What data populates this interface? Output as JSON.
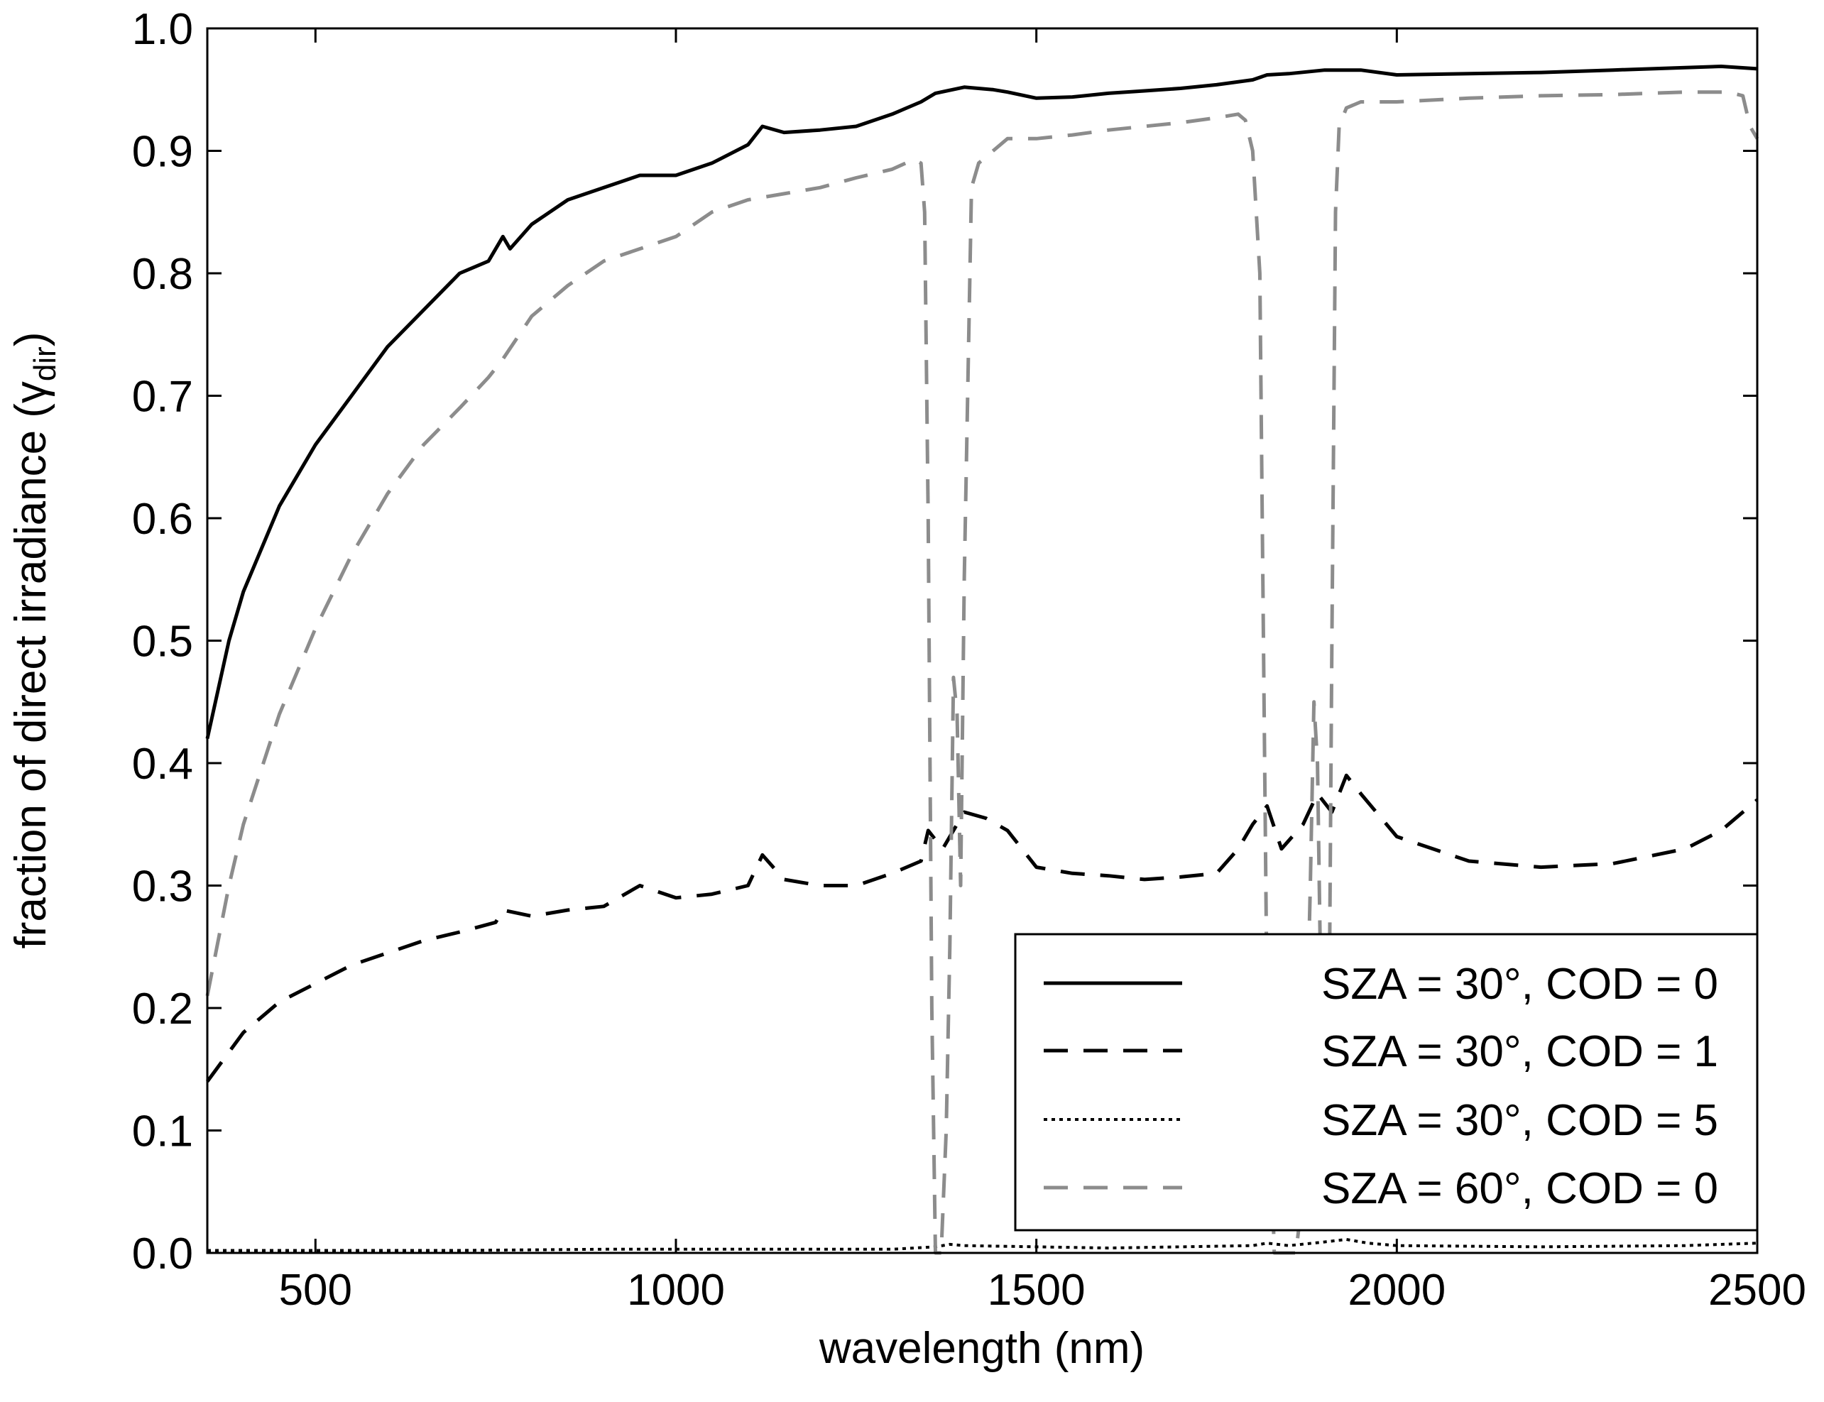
{
  "chart_data": {
    "type": "line",
    "title": "",
    "xlabel": "wavelength (nm)",
    "ylabel": "fraction of direct irradiance (γ",
    "ylabel_subscript": "dir",
    "ylabel_suffix": ")",
    "xlim": [
      350,
      2500
    ],
    "ylim": [
      0.0,
      1.0
    ],
    "x_ticks": [
      500,
      1000,
      1500,
      2000,
      2500
    ],
    "x_tick_labels": [
      "500",
      "1000",
      "1500",
      "2000",
      "2500"
    ],
    "y_ticks": [
      0.0,
      0.1,
      0.2,
      0.3,
      0.4,
      0.5,
      0.6,
      0.7,
      0.8,
      0.9,
      1.0
    ],
    "y_tick_labels": [
      "0.0",
      "0.1",
      "0.2",
      "0.3",
      "0.4",
      "0.5",
      "0.6",
      "0.7",
      "0.8",
      "0.9",
      "1.0"
    ],
    "grid": false,
    "legend_position": "bottom-right",
    "series": [
      {
        "name": "SZA = 30°, COD = 0",
        "color": "#000000",
        "style": "solid",
        "x": [
          350,
          380,
          400,
          450,
          500,
          550,
          600,
          650,
          700,
          740,
          760,
          770,
          800,
          850,
          900,
          950,
          1000,
          1050,
          1100,
          1120,
          1150,
          1200,
          1250,
          1300,
          1340,
          1360,
          1400,
          1440,
          1460,
          1500,
          1550,
          1600,
          1650,
          1700,
          1750,
          1800,
          1820,
          1850,
          1900,
          1950,
          2000,
          2100,
          2200,
          2300,
          2400,
          2450,
          2500
        ],
        "y": [
          0.42,
          0.5,
          0.54,
          0.61,
          0.66,
          0.7,
          0.74,
          0.77,
          0.8,
          0.81,
          0.83,
          0.82,
          0.84,
          0.86,
          0.87,
          0.88,
          0.88,
          0.89,
          0.905,
          0.92,
          0.915,
          0.917,
          0.92,
          0.93,
          0.94,
          0.947,
          0.952,
          0.95,
          0.948,
          0.943,
          0.944,
          0.947,
          0.949,
          0.951,
          0.954,
          0.958,
          0.962,
          0.963,
          0.966,
          0.966,
          0.962,
          0.963,
          0.964,
          0.966,
          0.968,
          0.969,
          0.967
        ]
      },
      {
        "name": "SZA = 30°, COD = 1",
        "color": "#000000",
        "style": "dashed",
        "x": [
          350,
          400,
          450,
          500,
          550,
          600,
          650,
          700,
          750,
          760,
          800,
          850,
          900,
          950,
          1000,
          1050,
          1100,
          1120,
          1150,
          1200,
          1250,
          1300,
          1340,
          1350,
          1370,
          1400,
          1430,
          1460,
          1500,
          1550,
          1600,
          1650,
          1700,
          1750,
          1780,
          1800,
          1820,
          1840,
          1870,
          1890,
          1910,
          1930,
          1950,
          2000,
          2050,
          2100,
          2200,
          2300,
          2400,
          2450,
          2500
        ],
        "y": [
          0.14,
          0.18,
          0.205,
          0.22,
          0.235,
          0.245,
          0.255,
          0.262,
          0.27,
          0.28,
          0.275,
          0.28,
          0.283,
          0.3,
          0.29,
          0.293,
          0.3,
          0.325,
          0.305,
          0.3,
          0.3,
          0.31,
          0.32,
          0.345,
          0.33,
          0.36,
          0.355,
          0.345,
          0.315,
          0.31,
          0.308,
          0.305,
          0.307,
          0.31,
          0.33,
          0.35,
          0.365,
          0.33,
          0.35,
          0.375,
          0.36,
          0.39,
          0.375,
          0.34,
          0.33,
          0.32,
          0.315,
          0.318,
          0.33,
          0.345,
          0.37
        ]
      },
      {
        "name": "SZA = 30°, COD = 5",
        "color": "#000000",
        "style": "dotted",
        "x": [
          350,
          500,
          700,
          900,
          1100,
          1300,
          1360,
          1380,
          1400,
          1500,
          1600,
          1700,
          1800,
          1820,
          1850,
          1900,
          1930,
          1960,
          2000,
          2200,
          2400,
          2500
        ],
        "y": [
          0.002,
          0.002,
          0.002,
          0.003,
          0.003,
          0.003,
          0.005,
          0.007,
          0.006,
          0.005,
          0.004,
          0.005,
          0.006,
          0.008,
          0.006,
          0.009,
          0.011,
          0.008,
          0.006,
          0.005,
          0.006,
          0.008
        ]
      },
      {
        "name": "SZA = 60°, COD = 0",
        "color": "#8c8c8c",
        "style": "dashed",
        "x": [
          350,
          380,
          400,
          450,
          500,
          550,
          600,
          650,
          700,
          740,
          760,
          800,
          850,
          900,
          950,
          1000,
          1050,
          1100,
          1150,
          1200,
          1250,
          1300,
          1330,
          1340,
          1345,
          1350,
          1355,
          1360,
          1368,
          1375,
          1380,
          1385,
          1390,
          1395,
          1400,
          1410,
          1420,
          1440,
          1460,
          1500,
          1550,
          1600,
          1650,
          1700,
          1750,
          1780,
          1790,
          1800,
          1810,
          1815,
          1820,
          1830,
          1840,
          1850,
          1860,
          1870,
          1880,
          1885,
          1890,
          1895,
          1900,
          1905,
          1910,
          1915,
          1920,
          1930,
          1950,
          2000,
          2100,
          2200,
          2300,
          2400,
          2460,
          2480,
          2490,
          2500
        ],
        "y": [
          0.21,
          0.3,
          0.35,
          0.44,
          0.51,
          0.57,
          0.62,
          0.66,
          0.69,
          0.715,
          0.73,
          0.765,
          0.79,
          0.81,
          0.82,
          0.83,
          0.85,
          0.86,
          0.865,
          0.87,
          0.878,
          0.885,
          0.893,
          0.89,
          0.85,
          0.6,
          0.2,
          0.0,
          0.0,
          0.1,
          0.25,
          0.47,
          0.44,
          0.3,
          0.55,
          0.87,
          0.89,
          0.9,
          0.91,
          0.91,
          0.913,
          0.917,
          0.92,
          0.923,
          0.927,
          0.93,
          0.925,
          0.9,
          0.8,
          0.5,
          0.2,
          0.0,
          0.0,
          0.0,
          0.0,
          0.05,
          0.3,
          0.45,
          0.4,
          0.2,
          0.05,
          0.1,
          0.5,
          0.85,
          0.92,
          0.935,
          0.94,
          0.94,
          0.943,
          0.945,
          0.946,
          0.948,
          0.948,
          0.945,
          0.92,
          0.91
        ]
      }
    ],
    "legend_entries": [
      "SZA = 30°, COD = 0",
      "SZA = 30°, COD = 1",
      "SZA = 30°, COD = 5",
      "SZA = 60°, COD = 0"
    ]
  }
}
